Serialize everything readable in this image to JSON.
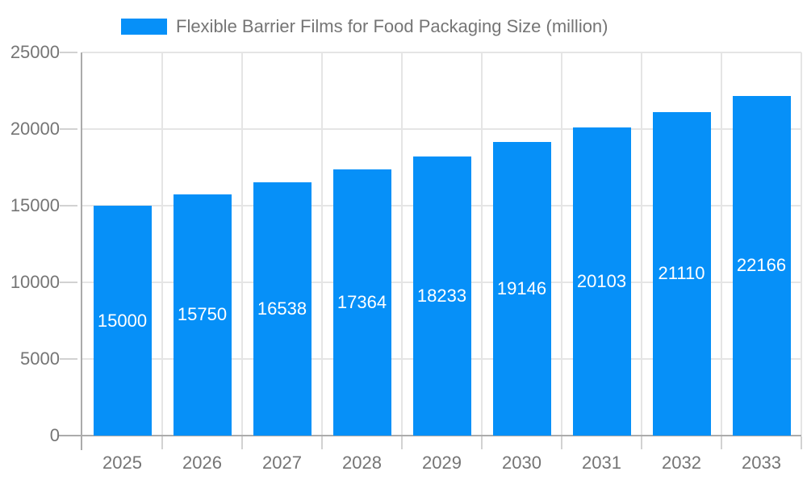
{
  "legend": {
    "label": "Flexible Barrier Films for Food Packaging Size (million)"
  },
  "chart_data": {
    "type": "bar",
    "title": "Flexible Barrier Films for Food Packaging Size (million)",
    "categories": [
      "2025",
      "2026",
      "2027",
      "2028",
      "2029",
      "2030",
      "2031",
      "2032",
      "2033"
    ],
    "series": [
      {
        "name": "Flexible Barrier Films for Food Packaging Size (million)",
        "values": [
          15000,
          15750,
          16538,
          17364,
          18233,
          19146,
          20103,
          21110,
          22166
        ]
      }
    ],
    "xlabel": "",
    "ylabel": "",
    "ylim": [
      0,
      25000
    ],
    "yticks": [
      0,
      5000,
      10000,
      15000,
      20000,
      25000
    ],
    "grid": true,
    "legend_position": "top-center",
    "value_labels": "inside-center"
  },
  "colors": {
    "bar_fill": "#0690f8",
    "bar_value_label": "#ffffff",
    "axis_line": "#ababab",
    "gridline": "#e5e5e5",
    "tick_mark": "#d2d2d2",
    "axis_text": "#757575",
    "background": "#ffffff"
  }
}
